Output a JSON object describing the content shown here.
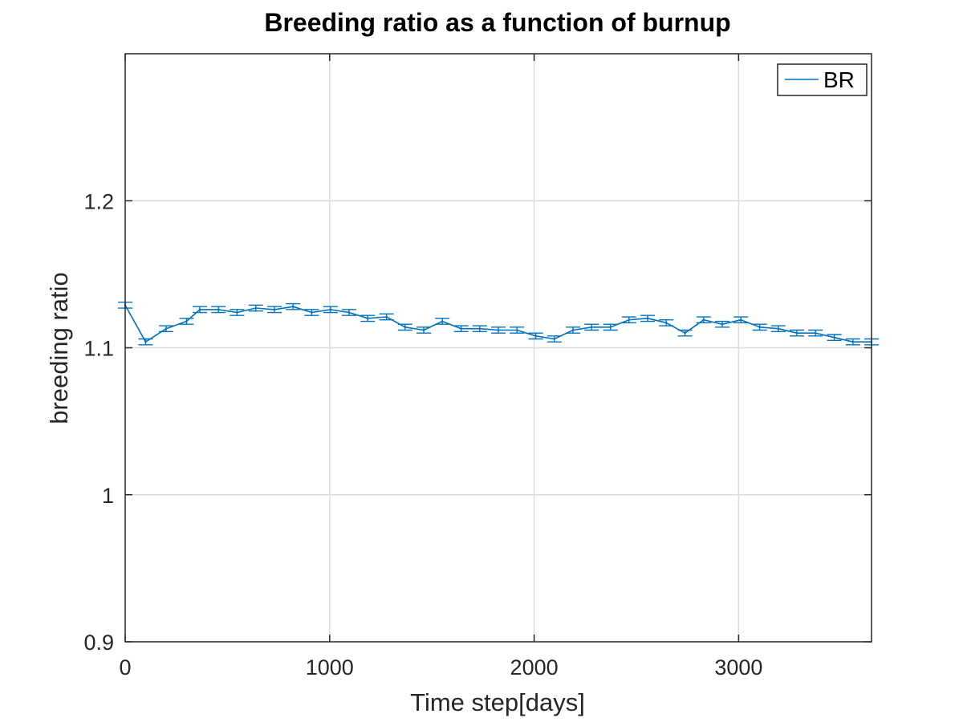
{
  "chart_data": {
    "type": "line",
    "title": "Breeding ratio as a function of burnup",
    "xlabel": "Time step[days]",
    "ylabel": "breeding ratio",
    "xlim": [
      0,
      3650
    ],
    "ylim": [
      0.9,
      1.3
    ],
    "xticks": [
      0,
      1000,
      2000,
      3000
    ],
    "xtick_labels": [
      "0",
      "1000",
      "2000",
      "3000"
    ],
    "yticks": [
      0.9,
      1.0,
      1.1,
      1.2
    ],
    "ytick_labels": [
      "0.9",
      "1",
      "1.1",
      "1.2"
    ],
    "grid": true,
    "legend_position": "top-right",
    "colors": {
      "series": "#0072BD",
      "grid": "#dcdcdc",
      "axis": "#262626"
    },
    "series": [
      {
        "name": "BR",
        "x": [
          0,
          100,
          200,
          300,
          365,
          456,
          547,
          639,
          730,
          821,
          912,
          1004,
          1095,
          1186,
          1278,
          1369,
          1460,
          1551,
          1643,
          1734,
          1825,
          1916,
          2008,
          2099,
          2190,
          2281,
          2373,
          2464,
          2555,
          2646,
          2738,
          2829,
          2920,
          3011,
          3103,
          3194,
          3285,
          3376,
          3468,
          3559,
          3650
        ],
        "y": [
          1.129,
          1.104,
          1.113,
          1.118,
          1.126,
          1.126,
          1.124,
          1.127,
          1.126,
          1.128,
          1.124,
          1.126,
          1.124,
          1.12,
          1.121,
          1.114,
          1.112,
          1.118,
          1.113,
          1.113,
          1.112,
          1.112,
          1.108,
          1.106,
          1.112,
          1.114,
          1.114,
          1.119,
          1.12,
          1.117,
          1.11,
          1.119,
          1.116,
          1.119,
          1.114,
          1.113,
          1.11,
          1.11,
          1.107,
          1.104,
          1.104
        ],
        "error": [
          0.002,
          0.002,
          0.002,
          0.002,
          0.002,
          0.002,
          0.002,
          0.002,
          0.002,
          0.002,
          0.002,
          0.002,
          0.002,
          0.002,
          0.002,
          0.002,
          0.002,
          0.002,
          0.002,
          0.002,
          0.002,
          0.002,
          0.002,
          0.002,
          0.002,
          0.002,
          0.002,
          0.002,
          0.002,
          0.002,
          0.002,
          0.002,
          0.002,
          0.002,
          0.002,
          0.002,
          0.002,
          0.002,
          0.002,
          0.002,
          0.002
        ]
      }
    ]
  }
}
